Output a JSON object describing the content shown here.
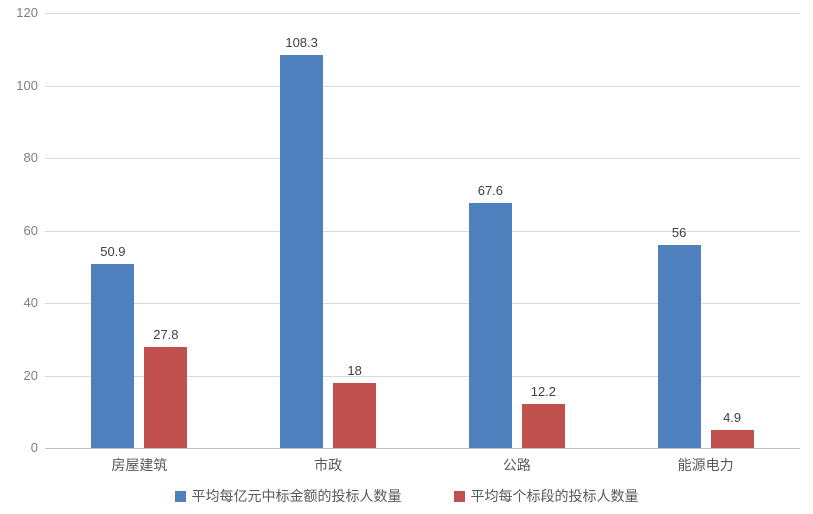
{
  "chart_data": {
    "type": "bar",
    "categories": [
      "房屋建筑",
      "市政",
      "公路",
      "能源电力"
    ],
    "series": [
      {
        "name": "平均每亿元中标金额的投标人数量",
        "color": "#4E81BD",
        "values": [
          50.9,
          108.3,
          67.6,
          56
        ]
      },
      {
        "name": "平均每个标段的投标人数量",
        "color": "#C0504D",
        "values": [
          27.8,
          18,
          12.2,
          4.9
        ]
      }
    ],
    "title": "",
    "xlabel": "",
    "ylabel": "",
    "ylim": [
      0,
      120
    ],
    "yticks": [
      0,
      20,
      40,
      60,
      80,
      100,
      120
    ],
    "grid": true,
    "legend_position": "bottom",
    "data_labels": true
  },
  "colors": {
    "background": "#FFFFFF",
    "gridline": "#D9D9D9",
    "axis_line": "#BFBFBF",
    "tick_label": "#7F7F7F",
    "category_label": "#595959",
    "data_label": "#404040",
    "legend_label": "#595959"
  }
}
